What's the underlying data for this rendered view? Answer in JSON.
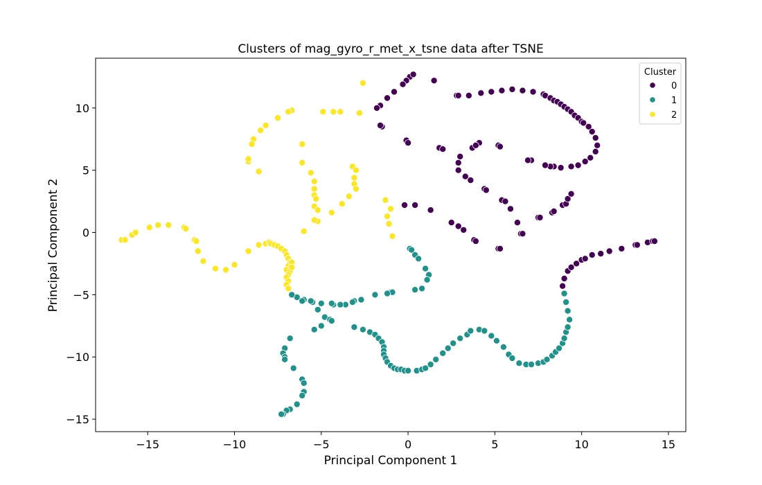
{
  "colors": {
    "cluster_0": "#440154",
    "cluster_1": "#21918c",
    "cluster_2": "#fde725",
    "marker_edge": "#ffffff",
    "axes": "#000000"
  },
  "chart_data": {
    "type": "scatter",
    "title": "Clusters of mag_gyro_r_met_x_tsne data after TSNE",
    "xlabel": "Principal Component 1",
    "ylabel": "Principal Component 2",
    "xlim": [
      -18,
      16
    ],
    "ylim": [
      -16,
      14
    ],
    "xticks": [
      -15,
      -10,
      -5,
      0,
      5,
      10,
      15
    ],
    "xtick_labels": [
      "−15",
      "−10",
      "−5",
      "0",
      "5",
      "10",
      "15"
    ],
    "yticks": [
      -15,
      -10,
      -5,
      0,
      5,
      10
    ],
    "ytick_labels": [
      "−15",
      "−10",
      "−5",
      "0",
      "5",
      "10"
    ],
    "grid": false,
    "legend": {
      "title": "Cluster",
      "placement": "top-right",
      "entries": [
        "0",
        "1",
        "2"
      ]
    },
    "series": [
      {
        "name": "0",
        "color": "#440154",
        "points": [
          [
            0.1,
            12.5
          ],
          [
            0.3,
            12.7
          ],
          [
            -0.1,
            12.2
          ],
          [
            -0.3,
            11.9
          ],
          [
            -0.8,
            11.3
          ],
          [
            -1.2,
            10.8
          ],
          [
            -1.6,
            10.2
          ],
          [
            -1.8,
            10.0
          ],
          [
            -1.5,
            8.5
          ],
          [
            -1.6,
            8.6
          ],
          [
            1.5,
            12.2
          ],
          [
            -0.1,
            7.4
          ],
          [
            0.0,
            7.2
          ],
          [
            1.8,
            6.8
          ],
          [
            2.0,
            6.7
          ],
          [
            2.8,
            11.0
          ],
          [
            2.9,
            11.0
          ],
          [
            3.5,
            11.0
          ],
          [
            4.2,
            11.2
          ],
          [
            4.8,
            11.3
          ],
          [
            5.4,
            11.4
          ],
          [
            6.0,
            11.5
          ],
          [
            6.6,
            11.4
          ],
          [
            7.2,
            11.3
          ],
          [
            7.8,
            11.1
          ],
          [
            7.9,
            11.0
          ],
          [
            8.2,
            10.8
          ],
          [
            8.4,
            10.6
          ],
          [
            8.6,
            10.5
          ],
          [
            8.8,
            10.3
          ],
          [
            9.0,
            10.1
          ],
          [
            9.2,
            9.9
          ],
          [
            9.4,
            9.7
          ],
          [
            9.6,
            9.4
          ],
          [
            9.8,
            9.2
          ],
          [
            10.0,
            8.9
          ],
          [
            10.1,
            8.8
          ],
          [
            10.4,
            8.5
          ],
          [
            10.6,
            8.1
          ],
          [
            10.8,
            7.6
          ],
          [
            10.9,
            7.0
          ],
          [
            10.8,
            6.5
          ],
          [
            10.5,
            6.0
          ],
          [
            10.2,
            5.7
          ],
          [
            9.8,
            5.4
          ],
          [
            9.4,
            5.3
          ],
          [
            8.8,
            5.2
          ],
          [
            8.4,
            5.3
          ],
          [
            8.2,
            5.3
          ],
          [
            7.9,
            5.4
          ],
          [
            7.1,
            5.8
          ],
          [
            6.9,
            5.8
          ],
          [
            5.2,
            7.0
          ],
          [
            5.3,
            6.9
          ],
          [
            4.0,
            7.1
          ],
          [
            4.1,
            7.2
          ],
          [
            3.7,
            6.8
          ],
          [
            3.9,
            7.0
          ],
          [
            3.0,
            6.1
          ],
          [
            2.9,
            5.6
          ],
          [
            2.9,
            5.0
          ],
          [
            3.3,
            4.5
          ],
          [
            3.6,
            4.2
          ],
          [
            4.4,
            3.5
          ],
          [
            4.5,
            3.4
          ],
          [
            5.4,
            2.6
          ],
          [
            5.6,
            2.5
          ],
          [
            5.9,
            1.9
          ],
          [
            6.3,
            0.8
          ],
          [
            6.5,
            -0.1
          ],
          [
            6.6,
            -0.1
          ],
          [
            7.5,
            1.2
          ],
          [
            7.6,
            1.2
          ],
          [
            8.3,
            1.6
          ],
          [
            8.4,
            1.7
          ],
          [
            8.9,
            2.2
          ],
          [
            9.1,
            2.3
          ],
          [
            9.2,
            2.7
          ],
          [
            9.4,
            3.1
          ],
          [
            0.4,
            2.2
          ],
          [
            -0.2,
            2.2
          ],
          [
            1.3,
            1.8
          ],
          [
            2.5,
            0.8
          ],
          [
            2.9,
            0.5
          ],
          [
            3.2,
            0.2
          ],
          [
            3.8,
            -0.6
          ],
          [
            3.9,
            -0.7
          ],
          [
            5.2,
            -1.3
          ],
          [
            5.3,
            -1.3
          ],
          [
            8.9,
            -4.3
          ],
          [
            9.0,
            -3.7
          ],
          [
            9.2,
            -3.1
          ],
          [
            9.4,
            -2.8
          ],
          [
            9.7,
            -2.5
          ],
          [
            10.0,
            -2.2
          ],
          [
            10.2,
            -2.1
          ],
          [
            10.6,
            -1.8
          ],
          [
            11.1,
            -1.7
          ],
          [
            11.6,
            -1.5
          ],
          [
            12.3,
            -1.3
          ],
          [
            13.1,
            -1.0
          ],
          [
            13.2,
            -1.0
          ],
          [
            13.8,
            -0.8
          ],
          [
            14.1,
            -0.7
          ],
          [
            14.2,
            -0.7
          ]
        ]
      },
      {
        "name": "1",
        "color": "#21918c",
        "points": [
          [
            0.1,
            -1.3
          ],
          [
            0.2,
            -1.4
          ],
          [
            0.4,
            -1.8
          ],
          [
            0.6,
            -2.1
          ],
          [
            1.0,
            -2.9
          ],
          [
            1.2,
            -3.4
          ],
          [
            1.1,
            -3.8
          ],
          [
            0.8,
            -4.5
          ],
          [
            0.4,
            -4.6
          ],
          [
            -1.0,
            -4.8
          ],
          [
            -0.9,
            -4.8
          ],
          [
            -1.2,
            -4.9
          ],
          [
            -1.9,
            -5.0
          ],
          [
            -2.7,
            -5.4
          ],
          [
            -3.1,
            -5.5
          ],
          [
            -3.2,
            -5.6
          ],
          [
            -3.6,
            -5.8
          ],
          [
            -3.9,
            -5.8
          ],
          [
            -4.3,
            -5.8
          ],
          [
            -4.4,
            -5.7
          ],
          [
            -5.0,
            -5.7
          ],
          [
            -5.5,
            -5.6
          ],
          [
            -5.6,
            -5.5
          ],
          [
            -6.0,
            -5.4
          ],
          [
            -6.1,
            -5.5
          ],
          [
            -6.4,
            -5.2
          ],
          [
            -6.7,
            -5.0
          ],
          [
            -5.2,
            -6.2
          ],
          [
            -4.8,
            -6.8
          ],
          [
            -4.5,
            -7.0
          ],
          [
            -4.4,
            -7.1
          ],
          [
            -5.0,
            -7.5
          ],
          [
            -5.4,
            -7.8
          ],
          [
            -3.1,
            -7.6
          ],
          [
            -2.6,
            -7.8
          ],
          [
            -2.2,
            -8.0
          ],
          [
            -1.9,
            -8.2
          ],
          [
            -1.7,
            -8.5
          ],
          [
            -1.5,
            -8.8
          ],
          [
            -1.4,
            -9.2
          ],
          [
            -1.4,
            -9.5
          ],
          [
            -1.4,
            -9.8
          ],
          [
            -1.3,
            -10.1
          ],
          [
            -1.2,
            -10.4
          ],
          [
            -1.0,
            -10.7
          ],
          [
            -0.8,
            -10.9
          ],
          [
            -0.6,
            -11.0
          ],
          [
            -0.4,
            -11.0
          ],
          [
            -0.2,
            -11.1
          ],
          [
            0.0,
            -11.1
          ],
          [
            0.5,
            -11.1
          ],
          [
            0.8,
            -11.0
          ],
          [
            1.0,
            -10.9
          ],
          [
            1.3,
            -10.6
          ],
          [
            1.6,
            -10.2
          ],
          [
            2.0,
            -9.7
          ],
          [
            2.3,
            -9.3
          ],
          [
            2.6,
            -8.9
          ],
          [
            3.0,
            -8.5
          ],
          [
            3.4,
            -8.2
          ],
          [
            3.6,
            -7.9
          ],
          [
            4.1,
            -7.8
          ],
          [
            4.4,
            -7.9
          ],
          [
            4.8,
            -8.3
          ],
          [
            5.1,
            -8.7
          ],
          [
            5.5,
            -9.2
          ],
          [
            5.8,
            -9.8
          ],
          [
            6.0,
            -10.1
          ],
          [
            6.4,
            -10.5
          ],
          [
            6.8,
            -10.6
          ],
          [
            7.1,
            -10.6
          ],
          [
            7.5,
            -10.5
          ],
          [
            7.8,
            -10.4
          ],
          [
            8.0,
            -10.2
          ],
          [
            8.3,
            -9.9
          ],
          [
            8.5,
            -9.6
          ],
          [
            8.7,
            -9.3
          ],
          [
            8.9,
            -8.9
          ],
          [
            9.0,
            -8.5
          ],
          [
            9.1,
            -8.0
          ],
          [
            9.2,
            -7.6
          ],
          [
            9.3,
            -7.0
          ],
          [
            9.2,
            -6.3
          ],
          [
            9.1,
            -5.6
          ],
          [
            9.0,
            -4.9
          ],
          [
            -7.1,
            -9.3
          ],
          [
            -7.2,
            -9.7
          ],
          [
            -7.1,
            -10.0
          ],
          [
            -7.1,
            -10.2
          ],
          [
            -6.8,
            -8.5
          ],
          [
            -6.6,
            -10.9
          ],
          [
            -6.1,
            -11.8
          ],
          [
            -6.0,
            -12.1
          ],
          [
            -6.0,
            -12.8
          ],
          [
            -6.1,
            -13.1
          ],
          [
            -6.4,
            -13.8
          ],
          [
            -6.8,
            -14.2
          ],
          [
            -7.0,
            -14.3
          ],
          [
            -7.2,
            -14.6
          ],
          [
            -7.3,
            -14.6
          ]
        ]
      },
      {
        "name": "2",
        "color": "#fde725",
        "points": [
          [
            -2.6,
            12.0
          ],
          [
            -2.8,
            9.6
          ],
          [
            -3.9,
            9.7
          ],
          [
            -4.3,
            9.7
          ],
          [
            -4.9,
            9.7
          ],
          [
            -6.7,
            9.8
          ],
          [
            -6.9,
            9.7
          ],
          [
            -7.5,
            9.2
          ],
          [
            -8.2,
            8.6
          ],
          [
            -8.5,
            8.2
          ],
          [
            -8.9,
            7.5
          ],
          [
            -9.0,
            7.1
          ],
          [
            -9.2,
            5.7
          ],
          [
            -9.2,
            5.9
          ],
          [
            -8.6,
            4.9
          ],
          [
            -6.1,
            7.1
          ],
          [
            -6.1,
            5.6
          ],
          [
            -5.6,
            4.8
          ],
          [
            -5.4,
            4.1
          ],
          [
            -5.4,
            3.5
          ],
          [
            -5.4,
            3.0
          ],
          [
            -5.3,
            2.7
          ],
          [
            -5.4,
            2.1
          ],
          [
            -5.2,
            1.8
          ],
          [
            -5.3,
            1.0
          ],
          [
            -5.2,
            0.9
          ],
          [
            -5.4,
            1.0
          ],
          [
            -6.0,
            0.1
          ],
          [
            -3.2,
            5.3
          ],
          [
            -3.0,
            5.0
          ],
          [
            -3.1,
            4.4
          ],
          [
            -3.1,
            3.9
          ],
          [
            -3.0,
            3.5
          ],
          [
            -3.4,
            2.9
          ],
          [
            -3.8,
            2.3
          ],
          [
            -4.4,
            1.6
          ],
          [
            -1.3,
            2.6
          ],
          [
            -1.0,
            1.9
          ],
          [
            -1.2,
            1.3
          ],
          [
            -1.1,
            0.7
          ],
          [
            -0.9,
            -0.3
          ],
          [
            -16.5,
            -0.6
          ],
          [
            -16.3,
            -0.6
          ],
          [
            -15.9,
            -0.2
          ],
          [
            -15.7,
            0.0
          ],
          [
            -14.9,
            0.4
          ],
          [
            -14.4,
            0.6
          ],
          [
            -13.8,
            0.6
          ],
          [
            -12.9,
            0.4
          ],
          [
            -12.8,
            0.3
          ],
          [
            -12.3,
            -0.6
          ],
          [
            -12.2,
            -0.7
          ],
          [
            -12.1,
            -1.5
          ],
          [
            -11.8,
            -2.3
          ],
          [
            -11.1,
            -2.9
          ],
          [
            -10.5,
            -3.0
          ],
          [
            -10.0,
            -2.6
          ],
          [
            -9.2,
            -1.5
          ],
          [
            -8.6,
            -1.0
          ],
          [
            -8.2,
            -0.9
          ],
          [
            -8.0,
            -0.8
          ],
          [
            -7.9,
            -0.9
          ],
          [
            -7.7,
            -1.0
          ],
          [
            -7.5,
            -1.1
          ],
          [
            -7.3,
            -1.3
          ],
          [
            -7.1,
            -1.5
          ],
          [
            -7.0,
            -1.8
          ],
          [
            -6.9,
            -2.1
          ],
          [
            -6.8,
            -2.4
          ],
          [
            -6.9,
            -2.7
          ],
          [
            -7.0,
            -3.0
          ],
          [
            -6.8,
            -3.1
          ],
          [
            -6.9,
            -3.4
          ],
          [
            -7.0,
            -3.6
          ],
          [
            -6.9,
            -3.9
          ],
          [
            -7.0,
            -4.2
          ],
          [
            -6.9,
            -4.5
          ],
          [
            -6.7,
            -2.4
          ],
          [
            -6.7,
            -2.8
          ]
        ]
      }
    ]
  }
}
